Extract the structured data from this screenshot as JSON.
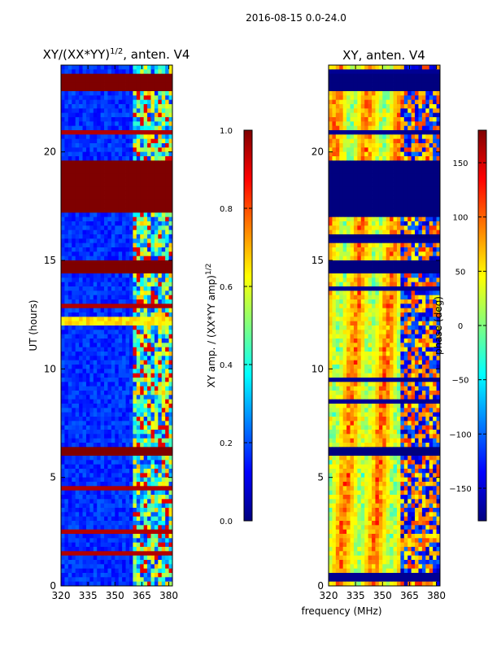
{
  "suptitle": "2016-08-15 0.0-24.0",
  "colors": {
    "jet": [
      "#00007f",
      "#0000ff",
      "#007fff",
      "#00ffff",
      "#7fff7f",
      "#ffff00",
      "#ff7f00",
      "#ff0000",
      "#7f0000"
    ]
  },
  "chart_data": [
    {
      "type": "heatmap",
      "title_base": "XY/(XX*YY)",
      "title_sup": "1/2",
      "title_suffix": ", anten. V4",
      "ylabel": "UT (hours)",
      "xlim": [
        320,
        382
      ],
      "ylim": [
        0,
        24
      ],
      "xticks": [
        320,
        335,
        350,
        365,
        380
      ],
      "yticks": [
        0,
        5,
        10,
        15,
        20
      ],
      "colorbar": {
        "label_base": "XY amp. / (XX*YY amp)",
        "label_sup": "1/2",
        "range": [
          0.0,
          1.0
        ],
        "ticks": [
          "0.0",
          "0.2",
          "0.4",
          "0.6",
          "0.8",
          "1.0"
        ]
      },
      "flagged_bands_hours": [
        [
          17.2,
          19.6
        ],
        [
          14.4,
          15.0
        ],
        [
          22.9,
          23.1
        ],
        [
          23.3,
          23.6
        ],
        [
          6.0,
          6.3
        ]
      ],
      "bright_bands_hours": [
        [
          12.1,
          12.3
        ]
      ]
    },
    {
      "type": "heatmap",
      "title": "XY, anten. V4",
      "xlim": [
        320,
        382
      ],
      "ylim": [
        0,
        24
      ],
      "xticks": [
        320,
        335,
        350,
        365,
        380
      ],
      "yticks": [
        0,
        5,
        10,
        15,
        20
      ],
      "colorbar": {
        "label": "phase (deg)",
        "range": [
          -180,
          180
        ],
        "ticks": [
          "−150",
          "−100",
          "−50",
          "0",
          "50",
          "100",
          "150"
        ]
      },
      "flagged_bands_hours": [
        [
          17.0,
          19.6
        ],
        [
          14.4,
          14.9
        ],
        [
          22.9,
          23.1
        ],
        [
          23.3,
          23.6
        ],
        [
          6.0,
          6.3
        ],
        [
          16.0,
          16.2
        ]
      ]
    }
  ],
  "shared_xlabel": "frequency (MHz)"
}
